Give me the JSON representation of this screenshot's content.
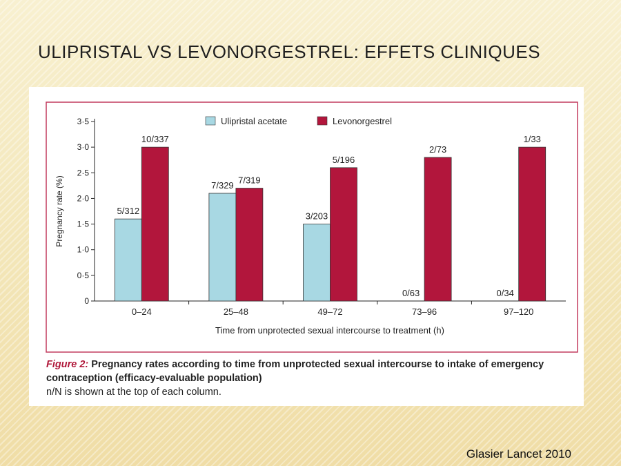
{
  "slide": {
    "title": "ULIPRISTAL VS LEVONORGESTREL: EFFETS CLINIQUES",
    "citation": "Glasier Lancet 2010"
  },
  "figure": {
    "label": "Figure 2:",
    "caption_bold": "Pregnancy rates according to time from unprotected sexual intercourse to intake of emergency contraception (efficacy-evaluable population)",
    "caption_note": "n/N is shown at the top of each column."
  },
  "colors": {
    "ulipristal": "#a8d8e3",
    "levonorgestrel": "#b2163c",
    "frame": "#c23b5e"
  },
  "chart_data": {
    "type": "bar",
    "xlabel": "Time from unprotected sexual intercourse to treatment (h)",
    "ylabel": "Pregnancy rate (%)",
    "ylim": [
      0,
      3.5
    ],
    "yticks": [
      "0",
      "0·5",
      "1·0",
      "1·5",
      "2·0",
      "2·5",
      "3·0",
      "3·5"
    ],
    "ytick_values": [
      0,
      0.5,
      1.0,
      1.5,
      2.0,
      2.5,
      3.0,
      3.5
    ],
    "categories": [
      "0–24",
      "25–48",
      "49–72",
      "73–96",
      "97–120"
    ],
    "legend_position": "top",
    "series": [
      {
        "name": "Ulipristal acetate",
        "values": [
          1.6,
          2.1,
          1.5,
          0,
          0
        ],
        "labels": [
          "5/312",
          "7/329",
          "3/203",
          "0/63",
          "0/34"
        ]
      },
      {
        "name": "Levonorgestrel",
        "values": [
          3.0,
          2.2,
          2.6,
          2.8,
          3.0
        ],
        "labels": [
          "10/337",
          "7/319",
          "5/196",
          "2/73",
          "1/33"
        ]
      }
    ]
  }
}
